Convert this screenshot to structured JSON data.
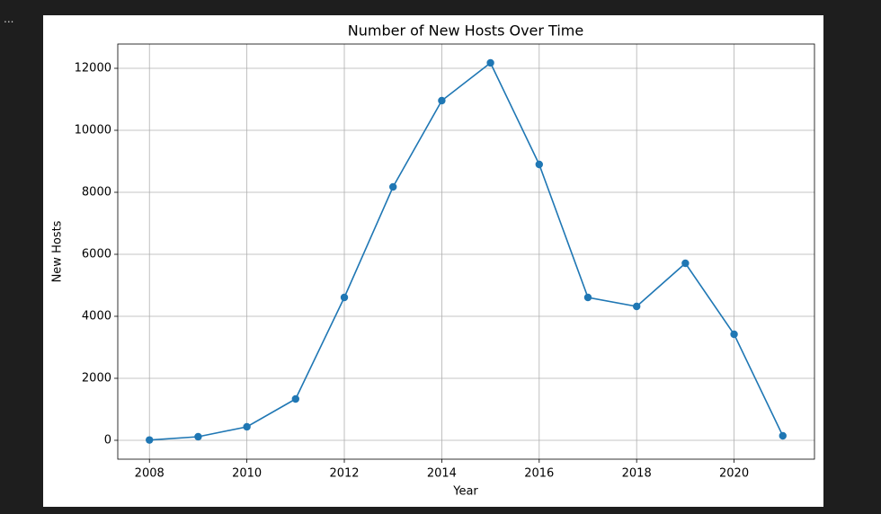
{
  "toolbar_text": "...",
  "chart_data": {
    "type": "line",
    "title": "Number of New Hosts Over Time",
    "xlabel": "Year",
    "ylabel": "New Hosts",
    "x": [
      2008,
      2009,
      2010,
      2011,
      2012,
      2013,
      2014,
      2015,
      2016,
      2017,
      2018,
      2019,
      2020,
      2021
    ],
    "series": [
      {
        "name": "New Hosts",
        "color": "#1f77b4",
        "values": [
          10,
          116,
          435,
          1333,
          4609,
          8174,
          10957,
          12174,
          8899,
          4609,
          4319,
          5710,
          3420,
          145
        ]
      }
    ],
    "xlim": [
      2007.35,
      2021.65
    ],
    "xticks": [
      2008,
      2010,
      2012,
      2014,
      2016,
      2018,
      2020
    ],
    "ylim": [
      -609,
      12783
    ],
    "yticks": [
      0,
      2000,
      4000,
      6000,
      8000,
      10000,
      12000
    ],
    "grid": true,
    "markers": true
  }
}
